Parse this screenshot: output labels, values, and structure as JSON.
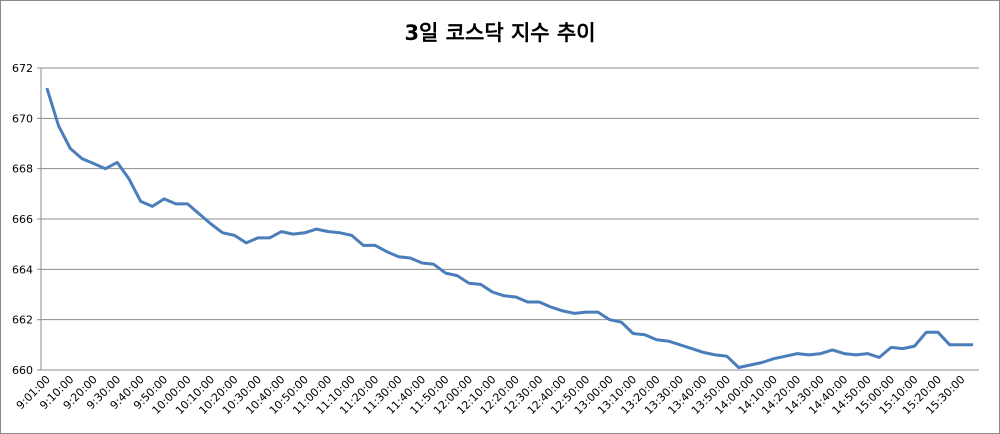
{
  "chart_data": {
    "type": "line",
    "title": "3일 코스닥 지수 추이",
    "categories": [
      "9:01:00",
      null,
      "9:10:00",
      null,
      "9:20:00",
      null,
      "9:30:00",
      null,
      "9:40:00",
      null,
      "9:50:00",
      null,
      "10:00:00",
      null,
      "10:10:00",
      null,
      "10:20:00",
      null,
      "10:30:00",
      null,
      "10:40:00",
      null,
      "10:50:00",
      null,
      "11:00:00",
      null,
      "11:10:00",
      null,
      "11:20:00",
      null,
      "11:30:00",
      null,
      "11:40:00",
      null,
      "11:50:00",
      null,
      "12:00:00",
      null,
      "12:10:00",
      null,
      "12:20:00",
      null,
      "12:30:00",
      null,
      "12:40:00",
      null,
      "12:50:00",
      null,
      "13:00:00",
      null,
      "13:10:00",
      null,
      "13:20:00",
      null,
      "13:30:00",
      null,
      "13:40:00",
      null,
      "13:50:00",
      null,
      "14:00:00",
      null,
      "14:10:00",
      null,
      "14:20:00",
      null,
      "14:30:00",
      null,
      "14:40:00",
      null,
      "14:50:00",
      null,
      "15:00:00",
      null,
      "15:10:00",
      null,
      "15:20:00",
      null,
      "15:30:00",
      null
    ],
    "series": [
      {
        "color": "#4a7ebb",
        "values": [
          671.2,
          669.7,
          668.8,
          668.4,
          668.2,
          668.0,
          668.25,
          667.6,
          666.7,
          666.5,
          666.8,
          666.6,
          666.6,
          666.2,
          665.8,
          665.45,
          665.35,
          665.05,
          665.25,
          665.25,
          665.5,
          665.4,
          665.45,
          665.6,
          665.5,
          665.45,
          665.35,
          664.95,
          664.95,
          664.7,
          664.5,
          664.45,
          664.25,
          664.2,
          663.85,
          663.75,
          663.45,
          663.4,
          663.1,
          662.95,
          662.9,
          662.7,
          662.7,
          662.5,
          662.35,
          662.25,
          662.3,
          662.3,
          662.0,
          661.9,
          661.45,
          661.4,
          661.2,
          661.15,
          661.0,
          660.85,
          660.7,
          660.6,
          660.55,
          660.1,
          660.2,
          660.3,
          660.45,
          660.55,
          660.65,
          660.6,
          660.65,
          660.8,
          660.65,
          660.6,
          660.65,
          660.5,
          660.9,
          660.85,
          660.95,
          661.5,
          661.5,
          661.0,
          661.0,
          661.0
        ]
      }
    ],
    "ylim": [
      660,
      672
    ],
    "yticks": [
      660,
      662,
      664,
      666,
      668,
      670,
      672
    ],
    "grid": true
  }
}
